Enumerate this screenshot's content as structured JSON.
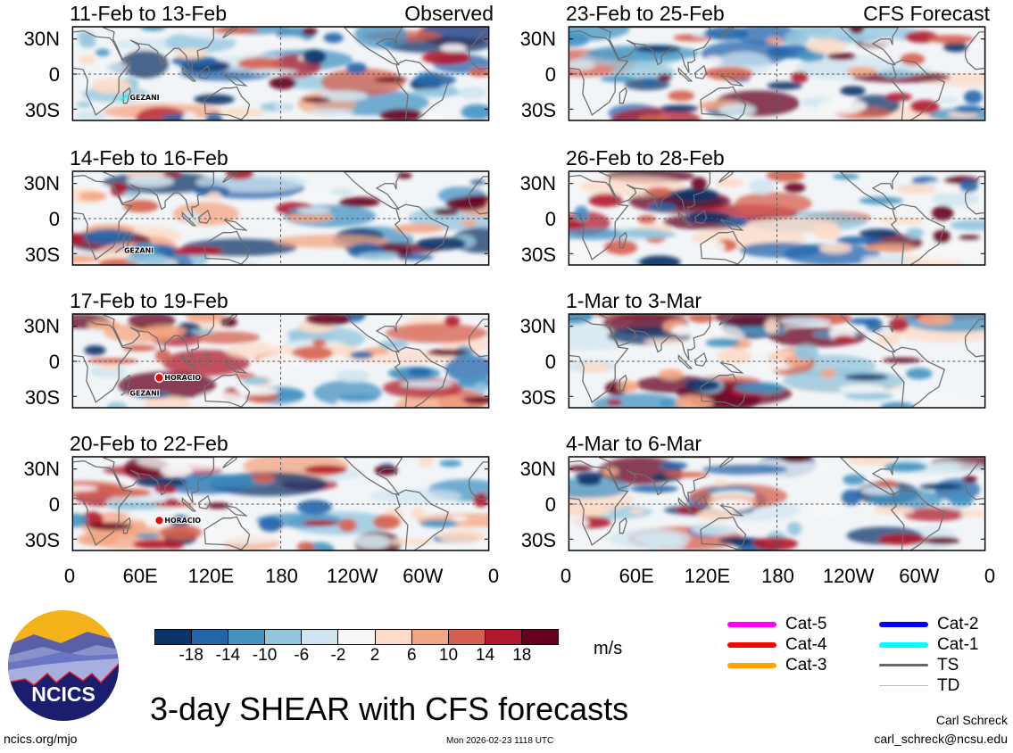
{
  "panels": [
    {
      "title": "11-Feb to 13-Feb",
      "label": "Observed",
      "column": "observed",
      "storms": [
        {
          "name": "GEZANI",
          "lon": 45,
          "lat": -20,
          "color": "#00ffff"
        }
      ]
    },
    {
      "title": "23-Feb to 25-Feb",
      "label": "CFS Forecast",
      "column": "forecast",
      "storms": []
    },
    {
      "title": "14-Feb to 16-Feb",
      "label": "",
      "column": "observed",
      "storms": [
        {
          "name": "GEZANI",
          "lon": 40,
          "lat": -27,
          "color": "#888888"
        }
      ]
    },
    {
      "title": "26-Feb to 28-Feb",
      "label": "",
      "column": "forecast",
      "storms": []
    },
    {
      "title": "17-Feb to 19-Feb",
      "label": "",
      "column": "observed",
      "storms": [
        {
          "name": "HORACIO",
          "lon": 75,
          "lat": -14,
          "color": "#ff0000"
        },
        {
          "name": "GEZANI",
          "lon": 45,
          "lat": -27,
          "color": "#888888"
        }
      ]
    },
    {
      "title": "1-Mar to 3-Mar",
      "label": "",
      "column": "forecast",
      "storms": []
    },
    {
      "title": "20-Feb to 22-Feb",
      "label": "",
      "column": "observed",
      "storms": [
        {
          "name": "HORACIO",
          "lon": 75,
          "lat": -14,
          "color": "#ff0000"
        }
      ]
    },
    {
      "title": "4-Mar to 6-Mar",
      "label": "",
      "column": "forecast",
      "storms": []
    }
  ],
  "lat_labels": [
    "30N",
    "0",
    "30S"
  ],
  "lon_labels": [
    "0",
    "60E",
    "120E",
    "180",
    "120W",
    "60W",
    "0"
  ],
  "colorbar": {
    "colors": [
      "#0b3468",
      "#2166ac",
      "#4393c3",
      "#92c5de",
      "#d1e5f0",
      "#f7f7f7",
      "#fddbc7",
      "#f4a582",
      "#d6604d",
      "#b2182b",
      "#67001f"
    ],
    "ticks": [
      "-18",
      "-14",
      "-10",
      "-6",
      "-2",
      "2",
      "6",
      "10",
      "14",
      "18"
    ],
    "units": "m/s"
  },
  "legend": [
    {
      "label": "Cat-5",
      "color": "#ff00ff"
    },
    {
      "label": "Cat-4",
      "color": "#ff0000"
    },
    {
      "label": "Cat-3",
      "color": "#ffa500"
    },
    {
      "label": "Cat-2",
      "color": "#0000ff"
    },
    {
      "label": "Cat-1",
      "color": "#00ffff"
    },
    {
      "label": "TS",
      "color": "#666666"
    },
    {
      "label": "TD",
      "color": "#bbbbbb"
    }
  ],
  "logo": {
    "text": "NCICS"
  },
  "footer": {
    "main_title": "3-day SHEAR with CFS forecasts",
    "site": "ncics.org/mjo",
    "timestamp": "Mon 2026-02-23 1118 UTC",
    "author": "Carl Schreck",
    "email": "carl_schreck@ncsu.edu"
  }
}
